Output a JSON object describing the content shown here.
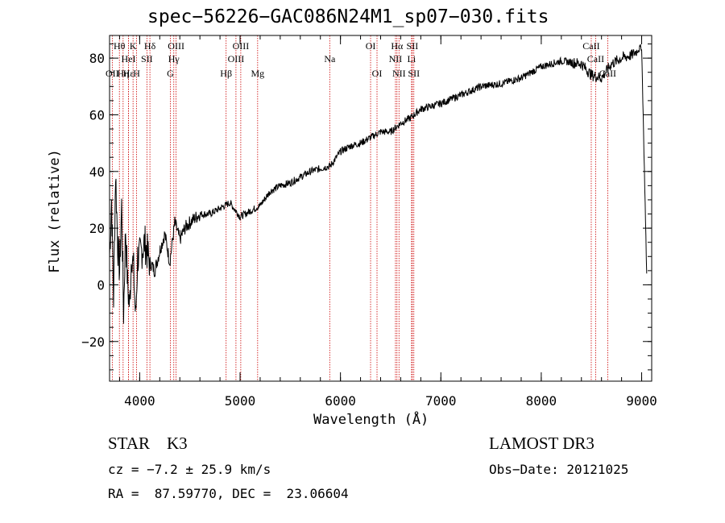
{
  "chart_data": {
    "type": "line",
    "title": "spec−56226−GAC086N24M1_sp07−030.fits",
    "xlabel": "Wavelength (Å)",
    "ylabel": "Flux (relative)",
    "xlim": [
      3700,
      9100
    ],
    "ylim": [
      -34,
      88
    ],
    "xticks_major": [
      4000,
      5000,
      6000,
      7000,
      8000,
      9000
    ],
    "xticks_minor_step": 200,
    "yticks_major": [
      -20,
      0,
      20,
      40,
      60,
      80
    ],
    "yticks_minor_step": 5,
    "xtick_labels": [
      "4000",
      "5000",
      "6000",
      "7000",
      "8000",
      "9000"
    ],
    "ytick_labels": [
      "−20",
      "0",
      "20",
      "40",
      "60",
      "80"
    ],
    "series": [
      {
        "name": "spectrum",
        "x": [
          3700,
          3720,
          3740,
          3760,
          3780,
          3800,
          3820,
          3840,
          3860,
          3880,
          3900,
          3920,
          3940,
          3960,
          3980,
          4000,
          4050,
          4100,
          4150,
          4200,
          4250,
          4300,
          4350,
          4400,
          4450,
          4500,
          4600,
          4700,
          4800,
          4900,
          5000,
          5100,
          5200,
          5300,
          5400,
          5500,
          5600,
          5700,
          5800,
          5900,
          6000,
          6100,
          6200,
          6300,
          6400,
          6500,
          6600,
          6700,
          6800,
          6900,
          7000,
          7200,
          7400,
          7600,
          7800,
          8000,
          8200,
          8400,
          8500,
          8600,
          8700,
          8800,
          8900,
          9000,
          9050
        ],
        "y": [
          10,
          30,
          -5,
          40,
          15,
          5,
          28,
          -10,
          20,
          0,
          -8,
          12,
          5,
          -12,
          10,
          10,
          15,
          8,
          5,
          12,
          18,
          8,
          22,
          16,
          20,
          22,
          25,
          25,
          27,
          29,
          24,
          26,
          28,
          33,
          35,
          36,
          38,
          40,
          41,
          42,
          47,
          49,
          50,
          52,
          54,
          54,
          57,
          59,
          62,
          63,
          64,
          67,
          70,
          71,
          73,
          77,
          79,
          78,
          74,
          73,
          78,
          80,
          81,
          84,
          4
        ]
      }
    ],
    "spectral_lines": [
      {
        "label": "Hθ",
        "wavelength": 3798,
        "row": 1
      },
      {
        "label": "OII",
        "wavelength": 3727,
        "row": 3
      },
      {
        "label": "Hη",
        "wavelength": 3835,
        "row": 3
      },
      {
        "label": "HeI",
        "wavelength": 3889,
        "row": 2
      },
      {
        "label": "Hε",
        "wavelength": 3889,
        "row": 3
      },
      {
        "label": "K",
        "wavelength": 3934,
        "row": 1
      },
      {
        "label": "H",
        "wavelength": 3969,
        "row": 3
      },
      {
        "label": "SII",
        "wavelength": 4072,
        "row": 2
      },
      {
        "label": "Hδ",
        "wavelength": 4102,
        "row": 1
      },
      {
        "label": "OIII",
        "wavelength": 4363,
        "row": 1
      },
      {
        "label": "Hγ",
        "wavelength": 4340,
        "row": 2
      },
      {
        "label": "G",
        "wavelength": 4305,
        "row": 3
      },
      {
        "label": "Hβ",
        "wavelength": 4861,
        "row": 3
      },
      {
        "label": "OIII",
        "wavelength": 4959,
        "row": 2
      },
      {
        "label": "OIII",
        "wavelength": 5007,
        "row": 1
      },
      {
        "label": "Mg",
        "wavelength": 5175,
        "row": 3
      },
      {
        "label": "Na",
        "wavelength": 5893,
        "row": 2
      },
      {
        "label": "OI",
        "wavelength": 6300,
        "row": 1
      },
      {
        "label": "OI",
        "wavelength": 6364,
        "row": 3
      },
      {
        "label": "Hα",
        "wavelength": 6563,
        "row": 1
      },
      {
        "label": "NII",
        "wavelength": 6548,
        "row": 2
      },
      {
        "label": "NII",
        "wavelength": 6583,
        "row": 3
      },
      {
        "label": "SII",
        "wavelength": 6716,
        "row": 1
      },
      {
        "label": "Li",
        "wavelength": 6708,
        "row": 2
      },
      {
        "label": "SII",
        "wavelength": 6731,
        "row": 3
      },
      {
        "label": "CaII",
        "wavelength": 8498,
        "row": 1
      },
      {
        "label": "CaII",
        "wavelength": 8542,
        "row": 2
      },
      {
        "label": "CaII",
        "wavelength": 8662,
        "row": 3
      }
    ]
  },
  "info": {
    "object_class": "STAR    K3",
    "survey": "LAMOST DR3",
    "redshift": "cz = −7.2 ± 25.9 km/s",
    "obs_date": "Obs−Date: 20121025",
    "coords": "RA =  87.59770, DEC =  23.06604"
  },
  "colors": {
    "spectrum": "#000000",
    "line_markers": "#cc0000",
    "axes": "#000000",
    "background": "#ffffff"
  }
}
